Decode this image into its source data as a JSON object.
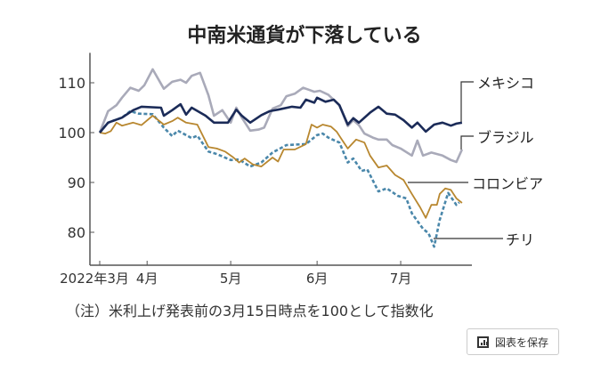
{
  "title": "中南米通貨が下落している",
  "note": "（注）米利上げ発表前の3月15日時点を100として指数化",
  "save_button": {
    "label": "図表を保存",
    "icon": "bar-chart-icon"
  },
  "chart_data": {
    "type": "line",
    "title": "中南米通貨が下落している",
    "xlabel": "",
    "ylabel": "",
    "x_unit": "days since 2022-03-15",
    "xlim": [
      0,
      134
    ],
    "ylim": [
      73.5,
      116
    ],
    "yticks": [
      80,
      90,
      100,
      110
    ],
    "xticks": [
      {
        "day": 0,
        "label": "2022年3月"
      },
      {
        "day": 17,
        "label": "4月"
      },
      {
        "day": 47,
        "label": "5月"
      },
      {
        "day": 78,
        "label": "6月"
      },
      {
        "day": 108,
        "label": "7月"
      }
    ],
    "grid": false,
    "series": [
      {
        "name": "メキシコ",
        "color": "#1b2b58",
        "dash": false,
        "points": [
          [
            0,
            100
          ],
          [
            3,
            102
          ],
          [
            8,
            103
          ],
          [
            12,
            104.5
          ],
          [
            15,
            105.2
          ],
          [
            22,
            105
          ],
          [
            23,
            103.4
          ],
          [
            26,
            104.5
          ],
          [
            29,
            105.7
          ],
          [
            31,
            103.6
          ],
          [
            33,
            105
          ],
          [
            38,
            103.4
          ],
          [
            41,
            102
          ],
          [
            46,
            102
          ],
          [
            49,
            104.6
          ],
          [
            51,
            103.4
          ],
          [
            54,
            102
          ],
          [
            58,
            103.5
          ],
          [
            61,
            104.3
          ],
          [
            64,
            104.6
          ],
          [
            69,
            105.2
          ],
          [
            72,
            105
          ],
          [
            74,
            106.6
          ],
          [
            77,
            106
          ],
          [
            78,
            107
          ],
          [
            81,
            106.2
          ],
          [
            84,
            106.6
          ],
          [
            86,
            105.5
          ],
          [
            89,
            101.6
          ],
          [
            91,
            102.9
          ],
          [
            93,
            102
          ],
          [
            97,
            104
          ],
          [
            100,
            105.2
          ],
          [
            103,
            103.8
          ],
          [
            106,
            103.6
          ],
          [
            109,
            102.5
          ],
          [
            112,
            101
          ],
          [
            114,
            102
          ],
          [
            117,
            100.2
          ],
          [
            120,
            101.6
          ],
          [
            123,
            102
          ],
          [
            126,
            101.4
          ],
          [
            128,
            101.8
          ],
          [
            130,
            102
          ]
        ]
      },
      {
        "name": "ブラジル",
        "color": "#a9aab9",
        "dash": false,
        "points": [
          [
            0,
            100
          ],
          [
            3,
            104.3
          ],
          [
            6,
            105.5
          ],
          [
            8,
            107
          ],
          [
            11,
            109
          ],
          [
            14,
            108.4
          ],
          [
            16,
            109.5
          ],
          [
            19,
            112.7
          ],
          [
            23,
            108.8
          ],
          [
            26,
            110.2
          ],
          [
            29,
            110.6
          ],
          [
            31,
            110
          ],
          [
            33,
            111.4
          ],
          [
            36,
            112
          ],
          [
            39,
            107.5
          ],
          [
            41,
            103.4
          ],
          [
            44,
            104.5
          ],
          [
            47,
            102
          ],
          [
            49,
            105
          ],
          [
            51,
            103
          ],
          [
            54,
            100.4
          ],
          [
            57,
            100.6
          ],
          [
            59,
            101
          ],
          [
            62,
            104.8
          ],
          [
            65,
            105.5
          ],
          [
            67,
            107.3
          ],
          [
            70,
            107.8
          ],
          [
            73,
            109
          ],
          [
            75,
            108.6
          ],
          [
            77,
            108.2
          ],
          [
            79,
            108.4
          ],
          [
            82,
            107.6
          ],
          [
            86,
            105.5
          ],
          [
            89,
            101.3
          ],
          [
            91,
            102.5
          ],
          [
            93,
            101.5
          ],
          [
            95,
            99.8
          ],
          [
            98,
            99
          ],
          [
            100,
            98.6
          ],
          [
            103,
            98.6
          ],
          [
            105,
            97.5
          ],
          [
            108,
            96.8
          ],
          [
            112,
            95.4
          ],
          [
            114,
            98.4
          ],
          [
            116,
            95.4
          ],
          [
            119,
            96
          ],
          [
            123,
            95.4
          ],
          [
            126,
            94.5
          ],
          [
            128,
            94.1
          ],
          [
            130,
            96.6
          ]
        ]
      },
      {
        "name": "コロンビア",
        "color": "#b8872f",
        "dash": false,
        "points": [
          [
            0,
            100
          ],
          [
            2,
            99.8
          ],
          [
            4,
            100.3
          ],
          [
            6,
            102
          ],
          [
            8,
            101.4
          ],
          [
            12,
            102
          ],
          [
            15,
            101.5
          ],
          [
            19,
            103.4
          ],
          [
            23,
            101.6
          ],
          [
            26,
            102.3
          ],
          [
            28,
            103
          ],
          [
            31,
            102
          ],
          [
            35,
            101.6
          ],
          [
            39,
            97.1
          ],
          [
            42,
            96.8
          ],
          [
            45,
            96.2
          ],
          [
            48,
            95
          ],
          [
            50,
            94
          ],
          [
            52,
            94.8
          ],
          [
            55,
            93.6
          ],
          [
            58,
            93.2
          ],
          [
            62,
            95
          ],
          [
            64,
            94.2
          ],
          [
            66,
            96.6
          ],
          [
            70,
            96.6
          ],
          [
            74,
            97.7
          ],
          [
            76,
            101.6
          ],
          [
            78,
            101
          ],
          [
            80,
            101.6
          ],
          [
            83,
            101.2
          ],
          [
            85,
            100.2
          ],
          [
            87,
            98.5
          ],
          [
            89,
            96.8
          ],
          [
            92,
            98.6
          ],
          [
            95,
            98
          ],
          [
            97,
            95.4
          ],
          [
            100,
            93
          ],
          [
            103,
            93.4
          ],
          [
            106,
            91.5
          ],
          [
            109,
            90.5
          ],
          [
            112,
            87.7
          ],
          [
            115,
            85
          ],
          [
            117,
            82.9
          ],
          [
            119,
            85.5
          ],
          [
            121,
            85.5
          ],
          [
            122,
            87.7
          ],
          [
            124,
            88.8
          ],
          [
            126,
            88.5
          ],
          [
            128,
            86.8
          ],
          [
            130,
            85.9
          ]
        ]
      },
      {
        "name": "チリ",
        "color": "#4a87aa",
        "dash": true,
        "points": [
          [
            0,
            100
          ],
          [
            3,
            102
          ],
          [
            8,
            103
          ],
          [
            11,
            104.3
          ],
          [
            14,
            103.8
          ],
          [
            19,
            103.7
          ],
          [
            23,
            101
          ],
          [
            26,
            99.3
          ],
          [
            28,
            100.4
          ],
          [
            31,
            99.5
          ],
          [
            33,
            98.9
          ],
          [
            35,
            99.4
          ],
          [
            39,
            96.2
          ],
          [
            42,
            95.7
          ],
          [
            47,
            94.5
          ],
          [
            50,
            94.6
          ],
          [
            54,
            93.2
          ],
          [
            58,
            94
          ],
          [
            62,
            96
          ],
          [
            67,
            97.5
          ],
          [
            74,
            97.7
          ],
          [
            78,
            99.5
          ],
          [
            80,
            99.8
          ],
          [
            82,
            99
          ],
          [
            86,
            98
          ],
          [
            89,
            94
          ],
          [
            91,
            94.8
          ],
          [
            94,
            92.3
          ],
          [
            96,
            92.6
          ],
          [
            100,
            88.2
          ],
          [
            103,
            88.8
          ],
          [
            107,
            87.3
          ],
          [
            110,
            86.8
          ],
          [
            112,
            83.8
          ],
          [
            116,
            80.7
          ],
          [
            118,
            79.8
          ],
          [
            120,
            77.1
          ],
          [
            122,
            82.5
          ],
          [
            125,
            87.9
          ],
          [
            128,
            85.5
          ],
          [
            129,
            86
          ]
        ]
      }
    ],
    "legend": "direct-labels-right"
  }
}
